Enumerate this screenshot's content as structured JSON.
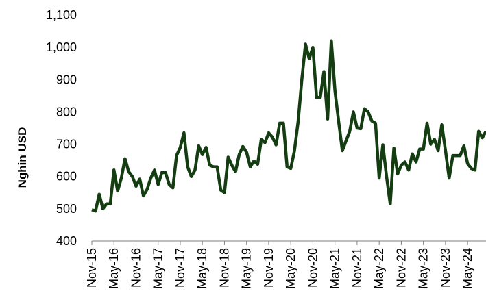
{
  "chart_data": {
    "type": "line",
    "y_label": "Nghin USD",
    "categories": [
      "Nov-15",
      null,
      null,
      null,
      null,
      null,
      "May-16",
      null,
      null,
      null,
      null,
      null,
      "Nov-16",
      null,
      null,
      null,
      null,
      null,
      "May-17",
      null,
      null,
      null,
      null,
      null,
      "Nov-17",
      null,
      null,
      null,
      null,
      null,
      "May-18",
      null,
      null,
      null,
      null,
      null,
      "Nov-18",
      null,
      null,
      null,
      null,
      null,
      "May-19",
      null,
      null,
      null,
      null,
      null,
      "Nov-19",
      null,
      null,
      null,
      null,
      null,
      "May-20",
      null,
      null,
      null,
      null,
      null,
      "Nov-20",
      null,
      null,
      null,
      null,
      null,
      "May-21",
      null,
      null,
      null,
      null,
      null,
      "Nov-21",
      null,
      null,
      null,
      null,
      null,
      "May-22",
      null,
      null,
      null,
      null,
      null,
      "Nov-22",
      null,
      null,
      null,
      null,
      null,
      "May-23",
      null,
      null,
      null,
      null,
      null,
      "Nov-23",
      null,
      null,
      null,
      null,
      null,
      "May-24",
      null,
      null,
      null,
      null,
      null
    ],
    "series": [
      {
        "name": null,
        "color": "#143d12",
        "values": [
          497,
          493,
          545,
          500,
          515,
          515,
          620,
          555,
          595,
          655,
          615,
          600,
          570,
          592,
          540,
          560,
          595,
          620,
          575,
          612,
          612,
          575,
          565,
          665,
          690,
          735,
          630,
          600,
          620,
          695,
          668,
          690,
          635,
          630,
          630,
          558,
          550,
          660,
          635,
          615,
          668,
          693,
          675,
          630,
          648,
          638,
          715,
          705,
          735,
          722,
          698,
          765,
          765,
          630,
          625,
          680,
          770,
          900,
          1010,
          965,
          1000,
          845,
          845,
          925,
          778,
          1020,
          865,
          770,
          680,
          710,
          740,
          800,
          750,
          748,
          810,
          800,
          772,
          765,
          595,
          698,
          600,
          515,
          688,
          608,
          635,
          645,
          620,
          670,
          645,
          685,
          685,
          765,
          700,
          715,
          680,
          760,
          680,
          595,
          665,
          665,
          665,
          695,
          640,
          625,
          620,
          740,
          720,
          740
        ]
      }
    ],
    "ylim": [
      400,
      1100
    ],
    "yticks": [
      400,
      500,
      600,
      700,
      800,
      900,
      {
        "value": 1000,
        "label": "1,000"
      },
      {
        "value": 1100,
        "label": "1,100"
      }
    ],
    "grid": false
  }
}
